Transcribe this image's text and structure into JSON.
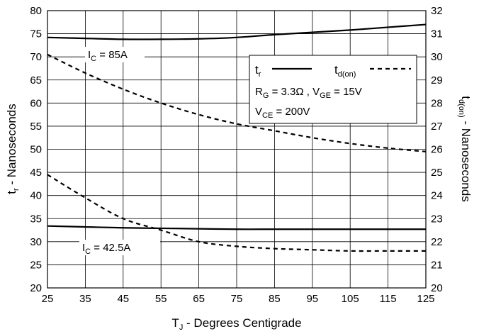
{
  "chart_data": {
    "type": "line",
    "xlabel": {
      "main": "T",
      "sub": "J",
      "rest": " - Degrees Centigrade"
    },
    "ylabel_left": {
      "main": "t",
      "sub": "r",
      "rest": " - Nanoseconds"
    },
    "ylabel_right": {
      "main": "t",
      "sub": "d(on)",
      "rest": " - Nanoseconds"
    },
    "x_ticks": [
      25,
      35,
      45,
      55,
      65,
      75,
      85,
      95,
      105,
      115,
      125
    ],
    "y_left_ticks": [
      20,
      25,
      30,
      35,
      40,
      45,
      50,
      55,
      60,
      65,
      70,
      75,
      80
    ],
    "y_right_ticks": [
      20,
      21,
      22,
      23,
      24,
      25,
      26,
      27,
      28,
      29,
      30,
      31,
      32
    ],
    "xlim": [
      25,
      125
    ],
    "ylim_left": [
      20,
      80
    ],
    "ylim_right": [
      20,
      32
    ],
    "grid": true,
    "series": [
      {
        "label_key": "tr_85",
        "axis": "left",
        "style": "solid",
        "x": [
          25,
          35,
          45,
          55,
          65,
          75,
          85,
          95,
          105,
          115,
          125
        ],
        "y": [
          74.2,
          74.0,
          73.8,
          73.8,
          73.9,
          74.2,
          74.8,
          75.3,
          75.8,
          76.4,
          77.0
        ]
      },
      {
        "label_key": "tdon_85",
        "axis": "right",
        "style": "dashed",
        "x": [
          25,
          35,
          45,
          55,
          65,
          75,
          85,
          95,
          105,
          115,
          125
        ],
        "y": [
          30.1,
          29.3,
          28.6,
          28.0,
          27.5,
          27.1,
          26.8,
          26.5,
          26.25,
          26.05,
          25.9
        ]
      },
      {
        "label_key": "tr_42",
        "axis": "left",
        "style": "solid",
        "x": [
          25,
          35,
          45,
          55,
          65,
          75,
          85,
          95,
          105,
          115,
          125
        ],
        "y": [
          33.4,
          33.2,
          33.0,
          32.9,
          32.8,
          32.7,
          32.7,
          32.7,
          32.7,
          32.7,
          32.7
        ]
      },
      {
        "label_key": "tdon_42",
        "axis": "right",
        "style": "dashed",
        "x": [
          25,
          35,
          45,
          55,
          65,
          75,
          85,
          95,
          105,
          115,
          125
        ],
        "y": [
          24.9,
          23.9,
          23.0,
          22.5,
          22.0,
          21.8,
          21.7,
          21.65,
          21.6,
          21.6,
          21.6
        ]
      }
    ],
    "annotations": {
      "ic85": {
        "main": "I",
        "sub": "C",
        "rest": " = 85A"
      },
      "ic42": {
        "main": "I",
        "sub": "C",
        "rest": " = 42.5A"
      }
    },
    "legend": {
      "position": "upper-right",
      "tr": {
        "main": "t",
        "sub": "r"
      },
      "tdon": {
        "main": "t",
        "sub": "d(on)"
      },
      "cond1": {
        "rg_main": "R",
        "rg_sub": "G",
        "rg_rest": " = 3.3Ω ,  ",
        "vge_main": "V",
        "vge_sub": "GE",
        "vge_rest": " = 15V"
      },
      "cond2": {
        "main": "V",
        "sub": "CE",
        "rest": " = 200V"
      }
    }
  }
}
